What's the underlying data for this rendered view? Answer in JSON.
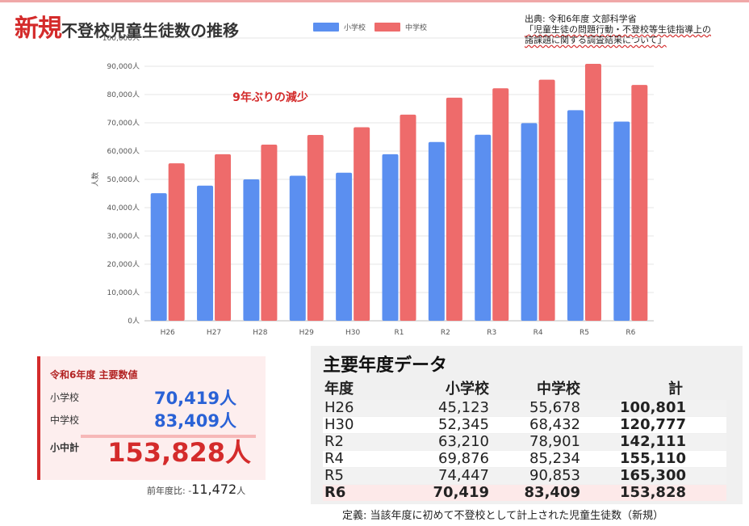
{
  "header": {
    "title_new": "新規",
    "title_rest": "不登校児童生徒数の推移",
    "source_line1": "出典: 令和6年度 文部科学省",
    "source_line2": "「児童生徒の問題行動・不登校等生徒指導上の",
    "source_line3": "諸課題に関する調査結果について」"
  },
  "chart_data": {
    "type": "bar",
    "title": "",
    "xlabel": "",
    "ylabel": "人数",
    "ylim": [
      0,
      100000
    ],
    "yticks": [
      "0人",
      "10,000人",
      "20,000人",
      "30,000人",
      "40,000人",
      "50,000人",
      "60,000人",
      "70,000人",
      "80,000人",
      "90,000人",
      "100,000人"
    ],
    "categories": [
      "H26",
      "H27",
      "H28",
      "H29",
      "H30",
      "R1",
      "R2",
      "R3",
      "R4",
      "R5",
      "R6"
    ],
    "series": [
      {
        "name": "小学校",
        "color": "#5b8ff0",
        "values": [
          45123,
          47800,
          50000,
          51300,
          52345,
          58900,
          63210,
          65800,
          69876,
          74447,
          70419
        ]
      },
      {
        "name": "中学校",
        "color": "#ee6b6b",
        "values": [
          55678,
          58900,
          62300,
          65700,
          68432,
          72900,
          78901,
          82200,
          85234,
          90853,
          83409
        ]
      }
    ],
    "legend_position": "top-center",
    "annotation": "9年ぶりの減少"
  },
  "summary": {
    "heading": "令和6年度 主要数値",
    "elementary_label": "小学校",
    "elementary_value": "70,419人",
    "junior_label": "中学校",
    "junior_value": "83,409人",
    "total_label": "小中計",
    "total_value": "153,828人",
    "prev_label": "前年度比: -",
    "prev_value": "11,472",
    "prev_unit": "人"
  },
  "table": {
    "title": "主要年度データ",
    "headers": [
      "年度",
      "小学校",
      "中学校",
      "計"
    ],
    "rows": [
      [
        "H26",
        "45,123",
        "55,678",
        "100,801"
      ],
      [
        "H30",
        "52,345",
        "68,432",
        "120,777"
      ],
      [
        "R2",
        "63,210",
        "78,901",
        "142,111"
      ],
      [
        "R4",
        "69,876",
        "85,234",
        "155,110"
      ],
      [
        "R5",
        "74,447",
        "90,853",
        "165,300"
      ],
      [
        "R6",
        "70,419",
        "83,409",
        "153,828"
      ]
    ],
    "definition": "定義: 当該年度に初めて不登校として計上された児童生徒数（新規）"
  }
}
